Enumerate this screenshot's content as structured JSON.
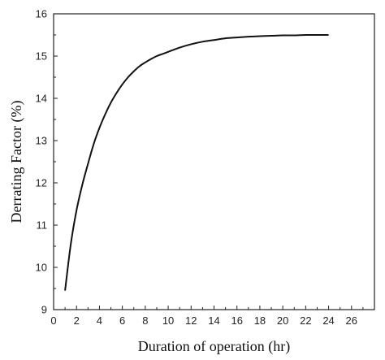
{
  "chart_data": {
    "type": "line",
    "title": "",
    "xlabel": "Duration of operation (hr)",
    "ylabel": "Derrating Factor (%)",
    "xlim": [
      0,
      28
    ],
    "ylim": [
      9,
      16
    ],
    "xticks": [
      0,
      2,
      4,
      6,
      8,
      10,
      12,
      14,
      16,
      18,
      20,
      22,
      24,
      26
    ],
    "yticks": [
      9,
      10,
      11,
      12,
      13,
      14,
      15,
      16
    ],
    "grid": false,
    "line_color": "#111111",
    "series": [
      {
        "x": [
          1,
          1.5,
          2,
          2.5,
          3,
          3.5,
          4,
          4.5,
          5,
          5.5,
          6,
          6.5,
          7,
          7.5,
          8,
          8.5,
          9,
          9.5,
          10,
          11,
          12,
          13,
          14,
          15,
          16,
          17,
          18,
          19,
          20,
          21,
          22,
          23,
          24
        ],
        "y": [
          9.45,
          10.55,
          11.35,
          11.95,
          12.45,
          12.92,
          13.3,
          13.62,
          13.9,
          14.13,
          14.33,
          14.5,
          14.64,
          14.76,
          14.85,
          14.93,
          15.0,
          15.05,
          15.1,
          15.2,
          15.28,
          15.34,
          15.38,
          15.42,
          15.44,
          15.46,
          15.47,
          15.48,
          15.49,
          15.49,
          15.5,
          15.5,
          15.5
        ]
      }
    ]
  }
}
